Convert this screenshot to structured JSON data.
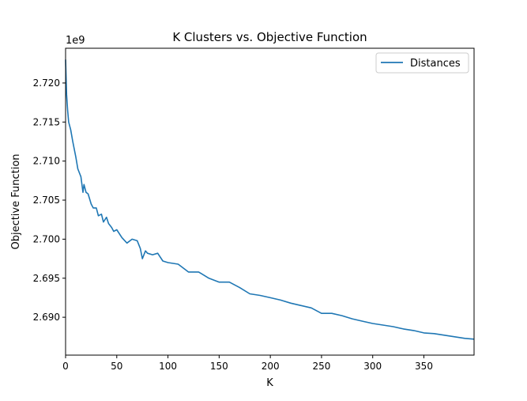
{
  "chart_data": {
    "type": "line",
    "title": "K Clusters vs. Objective Function",
    "xlabel": "K",
    "ylabel": "Objective Function",
    "y_offset_label": "1e9",
    "xlim": [
      0,
      399
    ],
    "ylim": [
      2.68515,
      2.72445
    ],
    "x_ticks": [
      0,
      50,
      100,
      150,
      200,
      250,
      300,
      350
    ],
    "x_tick_labels": [
      "0",
      "50",
      "100",
      "150",
      "200",
      "250",
      "300",
      "350"
    ],
    "y_ticks": [
      2.69,
      2.695,
      2.7,
      2.705,
      2.71,
      2.715,
      2.72
    ],
    "y_tick_labels": [
      "2.690",
      "2.695",
      "2.700",
      "2.705",
      "2.710",
      "2.715",
      "2.720"
    ],
    "grid": false,
    "legend_position": "upper right",
    "series": [
      {
        "name": "Distances",
        "color": "#1f77b4",
        "x": [
          0,
          1,
          2,
          3,
          5,
          7,
          10,
          12,
          15,
          17,
          18,
          20,
          22,
          25,
          27,
          30,
          32,
          35,
          37,
          40,
          42,
          45,
          47,
          50,
          55,
          60,
          65,
          70,
          73,
          75,
          78,
          80,
          85,
          90,
          95,
          100,
          110,
          120,
          130,
          140,
          150,
          160,
          170,
          180,
          190,
          200,
          210,
          220,
          230,
          240,
          250,
          260,
          270,
          280,
          290,
          300,
          310,
          320,
          330,
          340,
          350,
          360,
          370,
          380,
          390,
          399
        ],
        "y": [
          2.723,
          2.7185,
          2.7165,
          2.715,
          2.714,
          2.7125,
          2.7105,
          2.709,
          2.708,
          2.706,
          2.707,
          2.706,
          2.7058,
          2.7045,
          2.704,
          2.704,
          2.703,
          2.7032,
          2.7022,
          2.7028,
          2.702,
          2.7015,
          2.701,
          2.7012,
          2.7002,
          2.6995,
          2.7,
          2.6998,
          2.6988,
          2.6975,
          2.6985,
          2.6982,
          2.698,
          2.6982,
          2.6972,
          2.697,
          2.6968,
          2.6958,
          2.6958,
          2.695,
          2.6945,
          2.6945,
          2.6938,
          2.693,
          2.6928,
          2.6925,
          2.6922,
          2.6918,
          2.6915,
          2.6912,
          2.6905,
          2.6905,
          2.6902,
          2.6898,
          2.6895,
          2.6892,
          2.689,
          2.6888,
          2.6885,
          2.6883,
          2.688,
          2.6879,
          2.6877,
          2.6875,
          2.6873,
          2.6872
        ]
      }
    ]
  }
}
